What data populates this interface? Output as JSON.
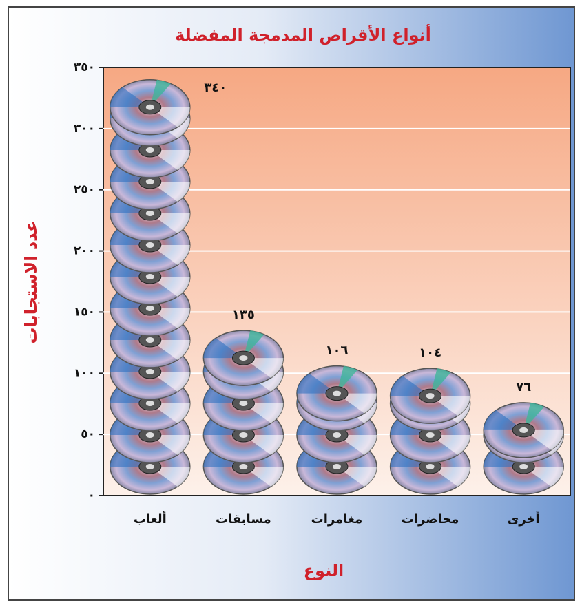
{
  "chart_data": {
    "type": "pictograph",
    "title": "أنواع الأقراص المدمجة المفضلة",
    "x_label": "النوع",
    "y_label": "عدد الاستجابات",
    "categories": [
      "ألعاب",
      "مسابقات",
      "مغامرات",
      "محاضرات",
      "أخرى"
    ],
    "values": [
      340,
      135,
      106,
      104,
      76
    ],
    "value_labels": [
      "٣٤٠",
      "١٣٥",
      "١٠٦",
      "١٠٤",
      "٧٦"
    ],
    "ylim": [
      0,
      350
    ],
    "yticks": [
      {
        "value": 0,
        "label": "٠"
      },
      {
        "value": 50,
        "label": "٥٠"
      },
      {
        "value": 100,
        "label": "١٠٠"
      },
      {
        "value": 150,
        "label": "١٥٠"
      },
      {
        "value": 200,
        "label": "٢٠٠"
      },
      {
        "value": 250,
        "label": "٢٥٠"
      },
      {
        "value": 300,
        "label": "٣٠٠"
      },
      {
        "value": 350,
        "label": "٣٥٠"
      }
    ],
    "grid": true
  }
}
